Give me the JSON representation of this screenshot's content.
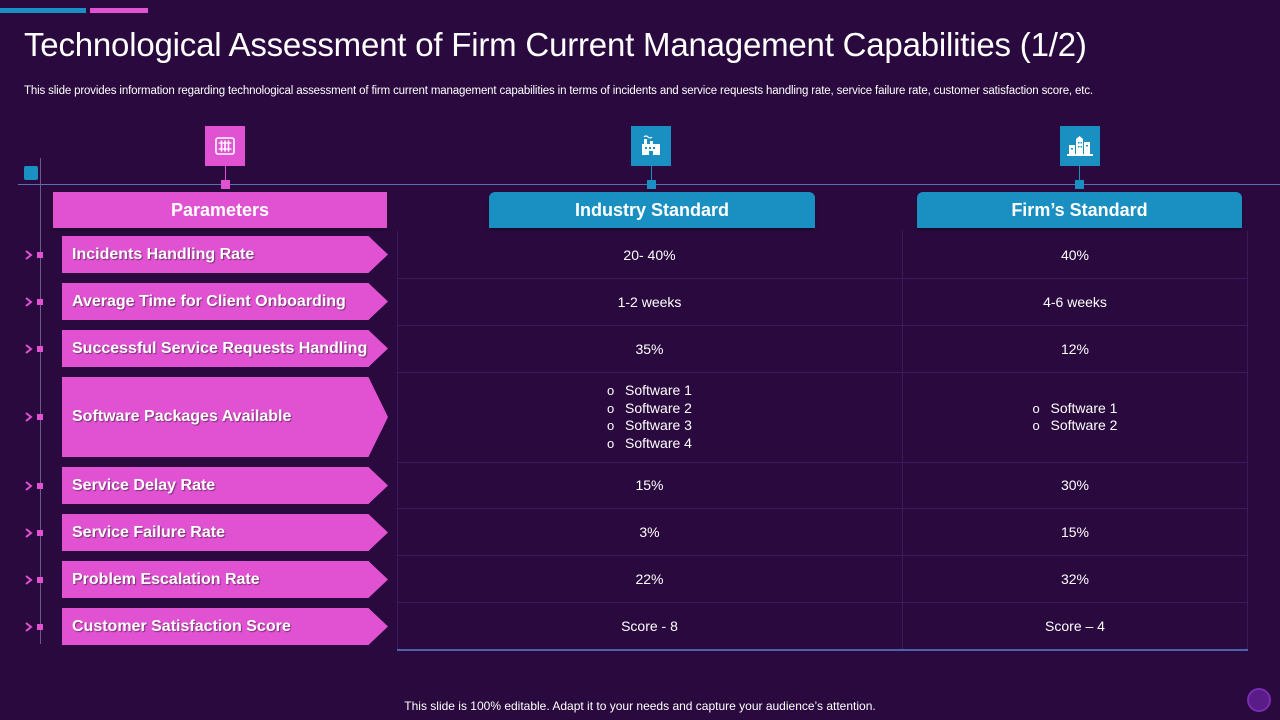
{
  "slide": {
    "title": "Technological Assessment of Firm Current Management Capabilities (1/2)",
    "subtitle": "This slide provides information regarding technological assessment of firm current management capabilities in terms of incidents and service requests handling rate, service failure rate, customer satisfaction score, etc.",
    "footer": "This slide is 100% editable. Adapt it to your needs and capture your audience’s attention."
  },
  "colors": {
    "background": "#2a0a3e",
    "accent_pink": "#e052d2",
    "accent_blue": "#1a8fc2"
  },
  "icons": {
    "parameters": "server-rack-icon",
    "industry": "factory-icon",
    "firm": "city-buildings-icon"
  },
  "headers": {
    "parameters": "Parameters",
    "industry": "Industry Standard",
    "firm": "Firm’s Standard"
  },
  "rows": [
    {
      "parameter": "Incidents Handling Rate",
      "industry": "20- 40%",
      "firm": "40%"
    },
    {
      "parameter": "Average Time for Client Onboarding",
      "industry": "1-2 weeks",
      "firm": "4-6 weeks"
    },
    {
      "parameter": "Successful Service Requests Handling",
      "industry": "35%",
      "firm": "12%"
    },
    {
      "parameter": "Software Packages Available",
      "industry": [
        "Software 1",
        "Software 2",
        "Software 3",
        "Software 4"
      ],
      "firm": [
        "Software 1",
        "Software 2"
      ]
    },
    {
      "parameter": "Service Delay Rate",
      "industry": "15%",
      "firm": "30%"
    },
    {
      "parameter": "Service Failure Rate",
      "industry": "3%",
      "firm": "15%"
    },
    {
      "parameter": "Problem Escalation Rate",
      "industry": "22%",
      "firm": "32%"
    },
    {
      "parameter": "Customer Satisfaction Score",
      "industry": "Score - 8",
      "firm": "Score – 4"
    }
  ]
}
